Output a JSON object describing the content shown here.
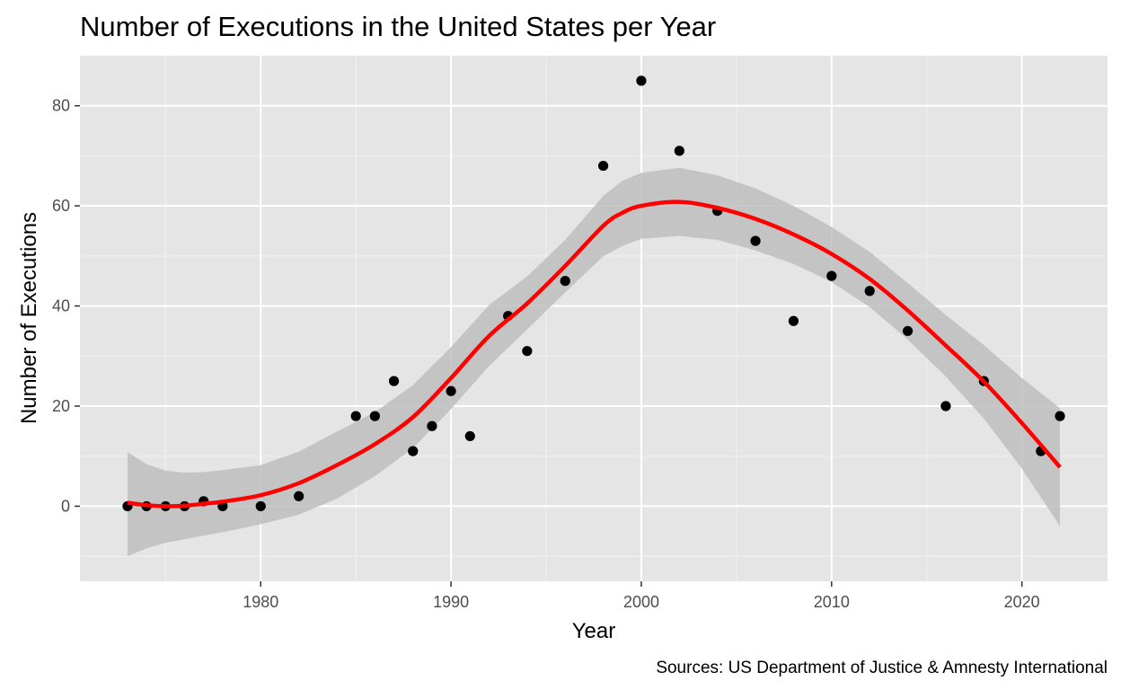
{
  "chart_data": {
    "type": "scatter",
    "title": "Number of Executions in the United States per Year",
    "xlabel": "Year",
    "ylabel": "Number of Executions",
    "caption": "Sources: US Department of Justice & Amnesty International",
    "xlim": [
      1970.5,
      2024.5
    ],
    "ylim": [
      -15,
      90
    ],
    "x_ticks": [
      1980,
      1990,
      2000,
      2010,
      2020
    ],
    "x_tick_labels": [
      "1980",
      "1990",
      "2000",
      "2010",
      "2020"
    ],
    "x_minor_ticks": [
      1975,
      1985,
      1995,
      2005,
      2015
    ],
    "y_ticks": [
      0,
      20,
      40,
      60,
      80
    ],
    "y_tick_labels": [
      "0",
      "20",
      "40",
      "60",
      "80"
    ],
    "y_minor_ticks": [
      -10,
      10,
      30,
      50,
      70
    ],
    "grid": true,
    "legend": "none",
    "series": [
      {
        "kind": "points",
        "color": "#000000",
        "x": [
          1973,
          1974,
          1975,
          1976,
          1977,
          1978,
          1980,
          1982,
          1985,
          1986,
          1987,
          1988,
          1989,
          1990,
          1991,
          1993,
          1994,
          1996,
          1998,
          2000,
          2002,
          2004,
          2006,
          2008,
          2010,
          2012,
          2014,
          2016,
          2018,
          2021,
          2022
        ],
        "y": [
          0,
          0,
          0,
          0,
          1,
          0,
          0,
          2,
          18,
          18,
          25,
          11,
          16,
          23,
          14,
          38,
          31,
          45,
          68,
          85,
          71,
          59,
          53,
          37,
          46,
          43,
          35,
          20,
          25,
          11,
          18
        ]
      },
      {
        "kind": "smooth",
        "color": "#ff0000",
        "x": [
          1973,
          1974,
          1975,
          1976,
          1977,
          1978,
          1980,
          1982,
          1984,
          1986,
          1988,
          1990,
          1992,
          1994,
          1996,
          1998,
          1999,
          2000,
          2002,
          2004,
          2006,
          2008,
          2010,
          2012,
          2014,
          2016,
          2018,
          2020,
          2022
        ],
        "y": [
          0.7,
          0.2,
          0.0,
          0.1,
          0.5,
          0.9,
          2.2,
          4.6,
          8.2,
          12.4,
          17.8,
          25.6,
          34.0,
          40.5,
          48.0,
          56.0,
          58.6,
          60.0,
          60.8,
          59.6,
          57.4,
          54.3,
          50.4,
          45.4,
          39.1,
          32.1,
          24.9,
          16.6,
          7.8
        ]
      },
      {
        "kind": "band",
        "color": "#bebebe",
        "x": [
          1973,
          1974,
          1975,
          1976,
          1977,
          1978,
          1980,
          1982,
          1984,
          1986,
          1988,
          1990,
          1992,
          1994,
          1996,
          1998,
          1999,
          2000,
          2002,
          2004,
          2006,
          2008,
          2010,
          2012,
          2014,
          2016,
          2018,
          2020,
          2022
        ],
        "lower": [
          -10.0,
          -8.4,
          -7.3,
          -6.6,
          -5.9,
          -5.2,
          -3.6,
          -1.7,
          1.5,
          6.0,
          11.6,
          19.4,
          28.0,
          35.3,
          42.7,
          49.9,
          52.0,
          53.4,
          54.0,
          53.2,
          51.1,
          48.4,
          44.8,
          39.8,
          33.3,
          25.9,
          17.5,
          7.5,
          -4.0
        ],
        "upper": [
          10.8,
          8.4,
          7.1,
          6.7,
          6.8,
          7.2,
          8.2,
          10.9,
          14.9,
          18.8,
          24.2,
          31.8,
          40.2,
          45.9,
          53.2,
          62.0,
          65.0,
          66.6,
          67.6,
          66.1,
          63.5,
          60.0,
          55.8,
          50.8,
          44.6,
          38.2,
          32.2,
          25.6,
          19.6
        ]
      }
    ],
    "colors": {
      "panel_bg": "#e5e5e5",
      "grid_major": "#ffffff",
      "grid_minor": "#f2f2f2",
      "tick_label": "#4d4d4d",
      "tick_mark": "#333333"
    }
  }
}
